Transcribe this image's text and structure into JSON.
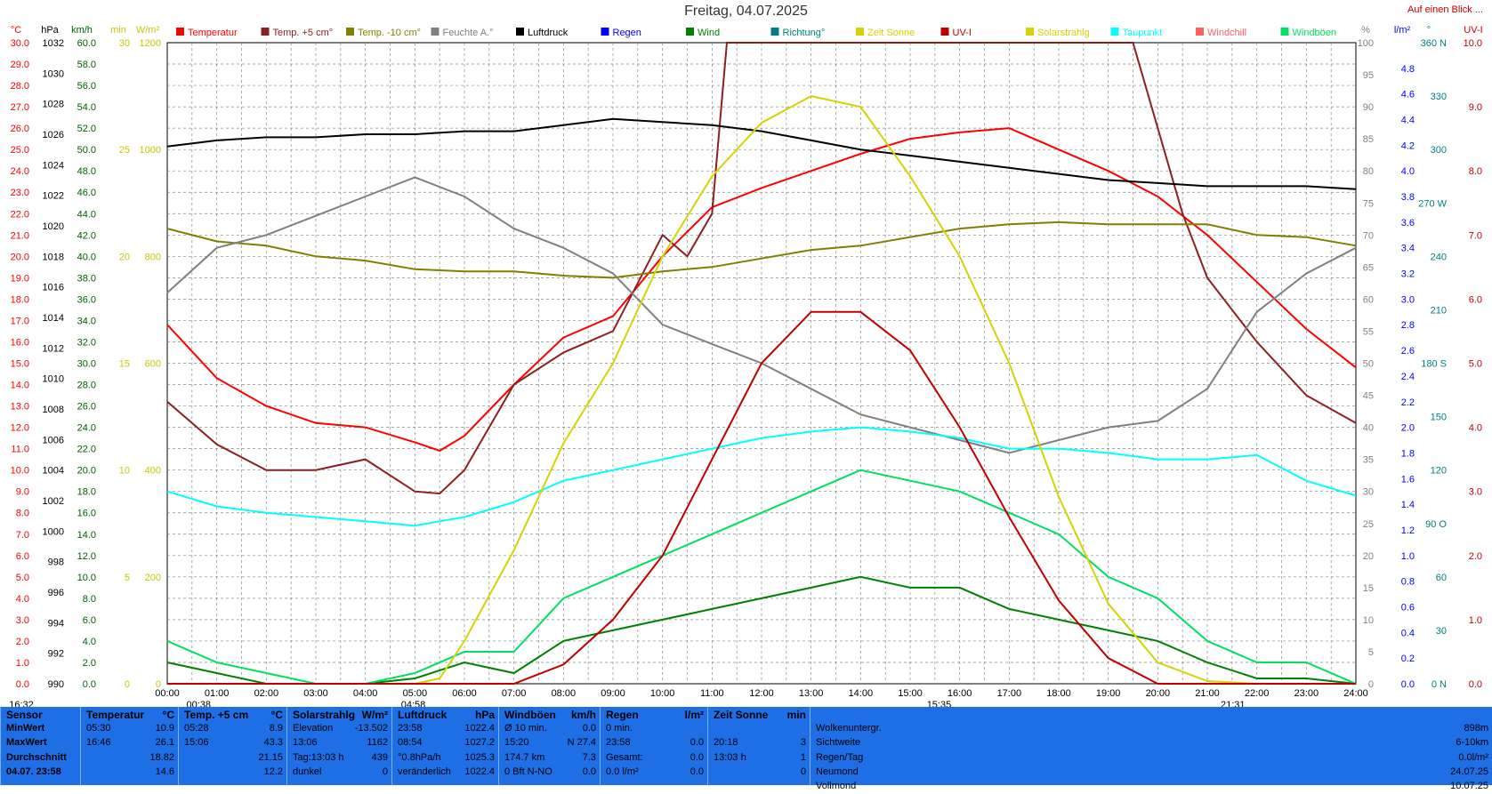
{
  "header": {
    "title": "Freitag, 04.07.2025",
    "link": "Auf einen Blick ..."
  },
  "chart_data": {
    "type": "line",
    "title": "Freitag, 04.07.2025",
    "x": [
      "00:00",
      "01:00",
      "02:00",
      "03:00",
      "04:00",
      "05:00",
      "06:00",
      "07:00",
      "08:00",
      "09:00",
      "10:00",
      "11:00",
      "12:00",
      "13:00",
      "14:00",
      "15:00",
      "16:00",
      "17:00",
      "18:00",
      "19:00",
      "20:00",
      "21:00",
      "22:00",
      "23:00",
      "24:00"
    ],
    "xlim": [
      0,
      24
    ],
    "grid": true,
    "legend_position": "top",
    "axes": [
      {
        "id": "temp",
        "unit": "°C",
        "range": [
          0,
          30
        ],
        "ticks": [
          "0.0",
          "1.0",
          "2.0",
          "3.0",
          "4.0",
          "5.0",
          "6.0",
          "7.0",
          "8.0",
          "9.0",
          "10.0",
          "11.0",
          "12.0",
          "13.0",
          "14.0",
          "15.0",
          "16.0",
          "17.0",
          "18.0",
          "19.0",
          "20.0",
          "21.0",
          "22.0",
          "23.0",
          "24.0",
          "25.0",
          "26.0",
          "27.0",
          "28.0",
          "29.0",
          "30.0"
        ],
        "color": "#ff0000"
      },
      {
        "id": "hpa",
        "unit": "hPa",
        "range": [
          990,
          1032
        ],
        "ticks": [
          "990",
          "992",
          "994",
          "996",
          "998",
          "1000",
          "1002",
          "1004",
          "1006",
          "1008",
          "1010",
          "1012",
          "1014",
          "1016",
          "1018",
          "1020",
          "1022",
          "1024",
          "1026",
          "1028",
          "1030",
          "1032"
        ],
        "color": "#000000"
      },
      {
        "id": "kmh",
        "unit": "km/h",
        "range": [
          0,
          60
        ],
        "ticks": [
          "0.0",
          "2.0",
          "4.0",
          "6.0",
          "8.0",
          "10.0",
          "12.0",
          "14.0",
          "16.0",
          "18.0",
          "20.0",
          "22.0",
          "24.0",
          "26.0",
          "28.0",
          "30.0",
          "32.0",
          "34.0",
          "36.0",
          "38.0",
          "40.0",
          "42.0",
          "44.0",
          "46.0",
          "48.0",
          "50.0",
          "52.0",
          "54.0",
          "56.0",
          "58.0",
          "60.0"
        ],
        "color": "#006000"
      },
      {
        "id": "min",
        "unit": "min",
        "range": [
          0,
          30
        ],
        "ticks": [
          "0",
          "5",
          "10",
          "15",
          "20",
          "25",
          "30"
        ],
        "color": "#c8c800"
      },
      {
        "id": "wm2",
        "unit": "W/m²",
        "range": [
          0,
          1200
        ],
        "ticks": [
          "0",
          "200",
          "400",
          "600",
          "800",
          "1000",
          "1200"
        ],
        "color": "#c8c800"
      },
      {
        "id": "pct",
        "unit": "%",
        "range": [
          0,
          100
        ],
        "ticks": [
          "0",
          "5",
          "10",
          "15",
          "20",
          "25",
          "30",
          "35",
          "40",
          "45",
          "50",
          "55",
          "60",
          "65",
          "70",
          "75",
          "80",
          "85",
          "90",
          "95",
          "100"
        ],
        "color": "#808080"
      },
      {
        "id": "lm2",
        "unit": "l/m²",
        "range": [
          0,
          5
        ],
        "ticks": [
          "0.0",
          "0.2",
          "0.4",
          "0.6",
          "0.8",
          "1.0",
          "1.2",
          "1.4",
          "1.6",
          "1.8",
          "2.0",
          "2.2",
          "2.4",
          "2.6",
          "2.8",
          "3.0",
          "3.2",
          "3.4",
          "3.6",
          "3.8",
          "4.0",
          "4.2",
          "4.4",
          "4.6",
          "4.8"
        ],
        "color": "#0000ff"
      },
      {
        "id": "dir",
        "unit": "°",
        "range": [
          0,
          360
        ],
        "ticks": [
          "0 N",
          "30",
          "60",
          "90 O",
          "120",
          "150",
          "180 S",
          "210",
          "240",
          "270 W",
          "300",
          "330",
          "360 N"
        ],
        "color": "#008080"
      },
      {
        "id": "uv",
        "unit": "UV-I",
        "range": [
          0,
          10
        ],
        "ticks": [
          "0.0",
          "1.0",
          "2.0",
          "3.0",
          "4.0",
          "5.0",
          "6.0",
          "7.0",
          "8.0",
          "9.0",
          "10.0"
        ],
        "color": "#c00000"
      }
    ],
    "series": [
      {
        "name": "Temperatur",
        "color": "#ff0000",
        "axis": "temp",
        "x": [
          0,
          1,
          2,
          3,
          4,
          5,
          5.5,
          6,
          7,
          8,
          9,
          10,
          11,
          12,
          13,
          14,
          15,
          16,
          17,
          18,
          19,
          20,
          21,
          22,
          23,
          24
        ],
        "values": [
          16.8,
          14.3,
          13.0,
          12.2,
          12.0,
          11.3,
          10.9,
          11.6,
          14.0,
          16.2,
          17.2,
          20.0,
          22.3,
          23.2,
          24.0,
          24.8,
          25.5,
          25.8,
          26.0,
          25.0,
          24.0,
          22.8,
          21.0,
          18.8,
          16.6,
          14.8
        ]
      },
      {
        "name": "Temp. +5 cm",
        "color": "#8b2020",
        "axis": "temp",
        "x": [
          0,
          1,
          2,
          3,
          4,
          5,
          5.5,
          6,
          7,
          8,
          9,
          10,
          10.5,
          11,
          11.3,
          19.5,
          20.5,
          21,
          22,
          23,
          24
        ],
        "values": [
          13.2,
          11.2,
          10.0,
          10.0,
          10.5,
          9.0,
          8.9,
          10.0,
          14.0,
          15.5,
          16.5,
          21.0,
          20.0,
          22.0,
          30,
          30,
          22.0,
          19.0,
          16.0,
          13.5,
          12.2
        ]
      },
      {
        "name": "Temp. -10 cm",
        "color": "#808000",
        "axis": "temp",
        "x": [
          0,
          1,
          2,
          3,
          4,
          5,
          6,
          7,
          8,
          9,
          10,
          11,
          12,
          13,
          14,
          15,
          16,
          17,
          18,
          19,
          20,
          21,
          22,
          23,
          24
        ],
        "values": [
          21.3,
          20.7,
          20.5,
          20.0,
          19.8,
          19.4,
          19.3,
          19.3,
          19.1,
          19.0,
          19.3,
          19.5,
          19.9,
          20.3,
          20.5,
          20.9,
          21.3,
          21.5,
          21.6,
          21.5,
          21.5,
          21.5,
          21.0,
          20.9,
          20.5
        ]
      },
      {
        "name": "Feuchte A.",
        "color": "#808080",
        "axis": "pct",
        "x": [
          0,
          1,
          2,
          3,
          4,
          5,
          6,
          7,
          8,
          9,
          10,
          11,
          12,
          13,
          14,
          15,
          16,
          17,
          18,
          19,
          20,
          21,
          22,
          23,
          24
        ],
        "values": [
          61,
          68,
          70,
          73,
          76,
          79,
          76,
          71,
          68,
          64,
          56,
          53,
          50,
          46,
          42,
          40,
          38,
          36,
          38,
          40,
          41,
          46,
          58,
          64,
          68
        ]
      },
      {
        "name": "Luftdruck",
        "color": "#000000",
        "axis": "hpa",
        "x": [
          0,
          1,
          2,
          3,
          4,
          5,
          6,
          7,
          8,
          9,
          10,
          11,
          12,
          13,
          14,
          15,
          16,
          17,
          18,
          19,
          20,
          21,
          22,
          23,
          24
        ],
        "values": [
          1025.2,
          1025.6,
          1025.8,
          1025.8,
          1026.0,
          1026.0,
          1026.2,
          1026.2,
          1026.6,
          1027.0,
          1026.8,
          1026.6,
          1026.2,
          1025.6,
          1025.0,
          1024.6,
          1024.2,
          1023.8,
          1023.4,
          1023.0,
          1022.8,
          1022.6,
          1022.6,
          1022.6,
          1022.4
        ]
      },
      {
        "name": "Taupunkt",
        "color": "#00ffff",
        "axis": "temp",
        "x": [
          0,
          1,
          2,
          3,
          4,
          5,
          6,
          7,
          8,
          9,
          10,
          11,
          12,
          13,
          14,
          15,
          16,
          17,
          18,
          19,
          20,
          21,
          22,
          23,
          24
        ],
        "values": [
          9.0,
          8.3,
          8.0,
          7.8,
          7.6,
          7.4,
          7.8,
          8.5,
          9.5,
          10.0,
          10.5,
          11.0,
          11.5,
          11.8,
          12.0,
          11.8,
          11.5,
          11.0,
          11.0,
          10.8,
          10.5,
          10.5,
          10.7,
          9.5,
          8.8
        ]
      },
      {
        "name": "Wind",
        "color": "#008000",
        "axis": "kmh",
        "x": [
          0,
          1,
          2,
          3,
          4,
          5,
          6,
          7,
          8,
          9,
          10,
          11,
          12,
          13,
          14,
          15,
          16,
          17,
          18,
          19,
          20,
          21,
          22,
          23,
          24
        ],
        "values": [
          2,
          1,
          0,
          0,
          0,
          0.5,
          2,
          1,
          4,
          5,
          6,
          7,
          8,
          9,
          10,
          9,
          9,
          7,
          6,
          5,
          4,
          2,
          0.5,
          0.5,
          0
        ]
      },
      {
        "name": "Windböen",
        "color": "#00e060",
        "axis": "kmh",
        "x": [
          0,
          1,
          2,
          3,
          4,
          5,
          6,
          7,
          8,
          9,
          10,
          11,
          12,
          13,
          14,
          15,
          16,
          17,
          18,
          19,
          20,
          21,
          22,
          23,
          24
        ],
        "values": [
          4,
          2,
          1,
          0,
          0,
          1,
          3,
          3,
          8,
          10,
          12,
          14,
          16,
          18,
          20,
          19,
          18,
          16,
          14,
          10,
          8,
          4,
          2,
          2,
          0
        ]
      },
      {
        "name": "Solarstrahlg",
        "color": "#d4d400",
        "axis": "wm2",
        "x": [
          0,
          1,
          2,
          3,
          4,
          5,
          5.5,
          6,
          7,
          8,
          9,
          10,
          11,
          12,
          13,
          14,
          15,
          16,
          17,
          18,
          19,
          20,
          21,
          22,
          23,
          24
        ],
        "values": [
          0,
          0,
          0,
          0,
          0,
          0,
          10,
          80,
          250,
          450,
          600,
          800,
          950,
          1050,
          1100,
          1080,
          950,
          800,
          600,
          350,
          150,
          40,
          5,
          0,
          0,
          0
        ]
      },
      {
        "name": "UV-I",
        "color": "#c00000",
        "axis": "uv",
        "x": [
          0,
          5,
          6,
          7,
          8,
          9,
          10,
          11,
          12,
          13,
          14,
          15,
          16,
          17,
          18,
          19,
          20,
          24
        ],
        "values": [
          0,
          0,
          0,
          0,
          0.3,
          1.0,
          2.0,
          3.5,
          5.0,
          5.8,
          5.8,
          5.2,
          4.0,
          2.6,
          1.3,
          0.4,
          0,
          0
        ]
      }
    ],
    "legend": [
      "Temperatur",
      "Temp. +5 cm°",
      "Temp. -10 cm°",
      "Feuchte A.°",
      "Luftdruck",
      "Regen",
      "Wind",
      "Richtung°",
      "Zeit Sonne",
      "UV-I",
      "Solarstrahlg",
      "Taupunkt",
      "Windchill",
      "Windböen"
    ],
    "legend_colors": [
      "#ff0000",
      "#8b2020",
      "#808000",
      "#808080",
      "#000000",
      "#0000ff",
      "#008000",
      "#008080",
      "#d4d400",
      "#c00000",
      "#d4d400",
      "#00ffff",
      "#ff6060",
      "#00e060"
    ],
    "annotations": [
      "16:32",
      "00:38",
      "04:58",
      "15:35",
      "21:31"
    ]
  },
  "table": {
    "columns": [
      {
        "header": [
          "Sensor",
          ""
        ],
        "rows": [
          [
            "MinWert",
            ""
          ],
          [
            "MaxWert",
            ""
          ],
          [
            "Durchschnitt",
            ""
          ],
          [
            "04.07. 23:58",
            ""
          ]
        ]
      },
      {
        "header": [
          "Temperatur",
          "°C"
        ],
        "rows": [
          [
            "05:30",
            "10.9"
          ],
          [
            "16:46",
            "26.1"
          ],
          [
            "",
            "18.82"
          ],
          [
            "",
            "14.6"
          ]
        ]
      },
      {
        "header": [
          "Temp. +5 cm",
          "°C"
        ],
        "rows": [
          [
            "05:28",
            "8.9"
          ],
          [
            "15:06",
            "43.3"
          ],
          [
            "",
            "21.15"
          ],
          [
            "",
            "12.2"
          ]
        ]
      },
      {
        "header": [
          "Solarstrahlg",
          "W/m²"
        ],
        "rows": [
          [
            "Elevation",
            "-13.502"
          ],
          [
            "13:06",
            "1162"
          ],
          [
            "Tag:13:03 h",
            "439"
          ],
          [
            "dunkel",
            "0"
          ]
        ]
      },
      {
        "header": [
          "Luftdruck",
          "hPa"
        ],
        "rows": [
          [
            "23:58",
            "1022.4"
          ],
          [
            "08:54",
            "1027.2"
          ],
          [
            "°0.8hPa/h",
            "1025.3"
          ],
          [
            "veränderlich",
            "1022.4"
          ]
        ]
      },
      {
        "header": [
          "Windböen",
          "km/h"
        ],
        "rows": [
          [
            "Ø 10 min.",
            "0.0"
          ],
          [
            "15:20",
            "N 27.4"
          ],
          [
            "174.7 km",
            "7.3"
          ],
          [
            "0 Bft N-NO",
            "0.0"
          ]
        ]
      },
      {
        "header": [
          "Regen",
          "l/m²"
        ],
        "rows": [
          [
            "0 min.",
            ""
          ],
          [
            "23:58",
            "0.0"
          ],
          [
            "Gesamt:",
            "0.0"
          ],
          [
            "0.0 l/m²",
            "0.0"
          ]
        ]
      },
      {
        "header": [
          "Zeit Sonne",
          "min"
        ],
        "rows": [
          [
            "",
            ""
          ],
          [
            "20:18",
            "3"
          ],
          [
            "13:03 h",
            "1"
          ],
          [
            "",
            "0"
          ]
        ]
      },
      {
        "header": [
          "",
          ""
        ],
        "rows": [
          [
            "Wolkenuntergr.",
            "898m"
          ],
          [
            "Sichtweite",
            "6-10km"
          ],
          [
            "Regen/Tag",
            "0.0l/m²"
          ],
          [
            "Neumond",
            "24.07.25"
          ]
        ],
        "extra": [
          "Vollmond",
          "10.07.25"
        ]
      }
    ]
  }
}
